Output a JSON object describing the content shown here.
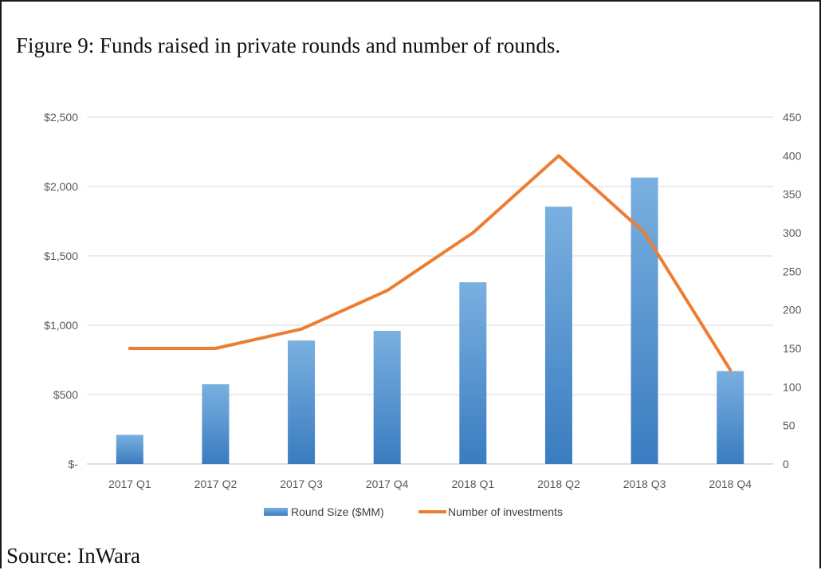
{
  "figure": {
    "title": "Figure 9: Funds raised in private rounds and number of rounds.",
    "source": "Source: InWara"
  },
  "colors": {
    "bar": "#5b9bd5",
    "bar_light": "#7ab0e0",
    "bar_dark": "#3a7cc0",
    "line": "#ed7d31",
    "grid": "#d9d9d9",
    "tick_text": "#595959"
  },
  "chart_data": {
    "type": "bar",
    "categories": [
      "2017 Q1",
      "2017 Q2",
      "2017 Q3",
      "2017 Q4",
      "2018 Q1",
      "2018 Q2",
      "2018 Q3",
      "2018 Q4"
    ],
    "series": [
      {
        "name": "Round Size ($MM)",
        "type": "bar",
        "axis": "left",
        "values": [
          210,
          575,
          890,
          960,
          1310,
          1855,
          2065,
          670
        ]
      },
      {
        "name": "Number of investments",
        "type": "line",
        "axis": "right",
        "values": [
          150,
          150,
          175,
          225,
          300,
          400,
          300,
          122
        ]
      }
    ],
    "y_left": {
      "ylim": [
        0,
        2500
      ],
      "ticks": [
        0,
        500,
        1000,
        1500,
        2000,
        2500
      ],
      "tick_labels": [
        "$-",
        "$500",
        "$1,000",
        "$1,500",
        "$2,000",
        "$2,500"
      ]
    },
    "y_right": {
      "ylim": [
        0,
        450
      ],
      "ticks": [
        0,
        50,
        100,
        150,
        200,
        250,
        300,
        350,
        400,
        450
      ],
      "tick_labels": [
        "0",
        "50",
        "100",
        "150",
        "200",
        "250",
        "300",
        "350",
        "400",
        "450"
      ]
    },
    "grid": true,
    "legend_position": "bottom"
  }
}
